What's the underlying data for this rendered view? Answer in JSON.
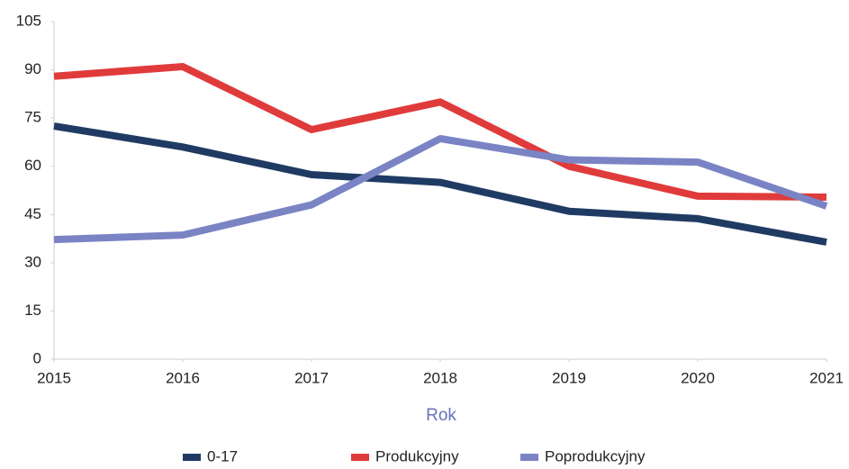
{
  "chart_data": {
    "type": "line",
    "xlabel": "Rok",
    "x": [
      2015,
      2016,
      2017,
      2018,
      2019,
      2020,
      2021
    ],
    "xlim": [
      2015,
      2021
    ],
    "xticks": [
      2015,
      2016,
      2017,
      2018,
      2019,
      2020,
      2021
    ],
    "ylim": [
      0,
      105
    ],
    "yticks": [
      0,
      15,
      30,
      45,
      60,
      75,
      90,
      105
    ],
    "legend": "bottom",
    "series": [
      {
        "name": "0-17",
        "color": "#1f3b63",
        "values": [
          72.5,
          66,
          57.4,
          55,
          46,
          43.7,
          36.4
        ]
      },
      {
        "name": "Produkcyjny",
        "color": "#e03b3b",
        "values": [
          88,
          91,
          71.4,
          80,
          60,
          50.7,
          50.4
        ]
      },
      {
        "name": "Poprodukcyjny",
        "color": "#7a84c4",
        "values": [
          37.2,
          38.6,
          48,
          68.6,
          62,
          61.3,
          47.6
        ]
      }
    ]
  }
}
